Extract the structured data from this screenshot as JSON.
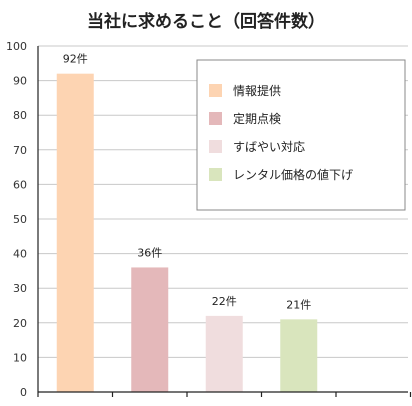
{
  "chart_data": {
    "type": "bar",
    "title": "当社に求めること（回答件数）",
    "xlabel": "",
    "ylabel": "",
    "categories": [
      "情報提供",
      "定期点検",
      "すばやい対応",
      "レンタル価格の値下げ"
    ],
    "values": [
      92,
      36,
      22,
      21
    ],
    "data_labels": [
      "92件",
      "36件",
      "22件",
      "21件"
    ],
    "colors": [
      "#FDD4B2",
      "#E4B8BA",
      "#F0DDDE",
      "#D9E5BD"
    ],
    "ylim": [
      0,
      100
    ],
    "yticks": [
      "0",
      "10",
      "20",
      "30",
      "40",
      "50",
      "60",
      "70",
      "80",
      "90",
      "100"
    ],
    "grid": true,
    "legend_position": "top-right",
    "legend": [
      {
        "label": "情報提供",
        "color": "#FDD4B2"
      },
      {
        "label": "定期点検",
        "color": "#E4B8BA"
      },
      {
        "label": "すばやい対応",
        "color": "#F0DDDE"
      },
      {
        "label": "レンタル価格の値下げ",
        "color": "#D9E5BD"
      }
    ]
  }
}
